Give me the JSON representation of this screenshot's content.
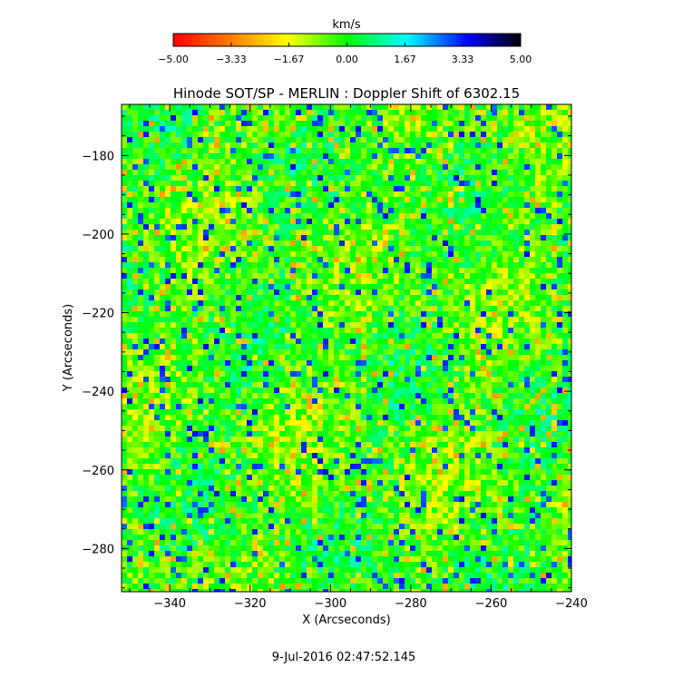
{
  "chart_data": {
    "type": "heatmap",
    "title": "Hinode SOT/SP - MERLIN : Doppler Shift of 6302.15",
    "xlabel": "X (Arcseconds)",
    "ylabel": "Y (Arcseconds)",
    "xlim": [
      -352,
      -240
    ],
    "ylim": [
      -291,
      -167
    ],
    "xticks": [
      -340,
      -320,
      -300,
      -280,
      -260,
      -240
    ],
    "xtick_labels": [
      "−340",
      "−320",
      "−300",
      "−280",
      "−260",
      "−240"
    ],
    "yticks": [
      -180,
      -200,
      -220,
      -240,
      -260,
      -280
    ],
    "ytick_labels": [
      "−180",
      "−200",
      "−220",
      "−240",
      "−260",
      "−280"
    ],
    "colorbar": {
      "label": "km/s",
      "range": [
        -5.0,
        5.0
      ],
      "ticks": [
        -5.0,
        -3.33,
        -1.67,
        0.0,
        1.67,
        3.33,
        5.0
      ],
      "tick_labels": [
        "−5.00",
        "−3.33",
        "−1.67",
        "0.00",
        "1.67",
        "3.33",
        "5.00"
      ],
      "colormap": [
        "#ff0000",
        "#ff8000",
        "#ffff00",
        "#00ff00",
        "#00ffff",
        "#0000ff",
        "#000000"
      ]
    },
    "field_statistics": {
      "dominant_range_kms": [
        -1.5,
        1.0
      ],
      "extremes_kms": [
        -3.0,
        3.5
      ]
    }
  },
  "footer": {
    "timestamp": "9-Jul-2016 02:47:52.145"
  }
}
